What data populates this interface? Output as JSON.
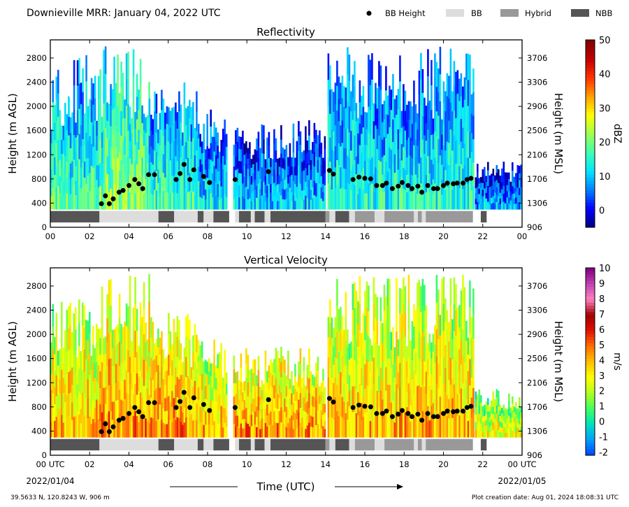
{
  "header": {
    "title": "Downieville MRR:  January 04, 2022 UTC",
    "legend": [
      {
        "label": "BB Height",
        "kind": "dot",
        "color": "#000000"
      },
      {
        "label": "BB",
        "kind": "box",
        "color": "#dddddd"
      },
      {
        "label": "Hybrid",
        "kind": "box",
        "color": "#999999"
      },
      {
        "label": "NBB",
        "kind": "box",
        "color": "#555555"
      }
    ]
  },
  "footer": {
    "location": "39.5633 N, 120.8243 W, 906 m",
    "creation": "Plot creation date: Aug 01, 2024 18:08:31 UTC",
    "xlabel": "Time (UTC)",
    "date_start": "2022/01/04",
    "date_end": "2022/01/05"
  },
  "chart_data": [
    {
      "type": "heatmap",
      "title": "Reflectivity",
      "ylabel": "Height (m AGL)",
      "ylabel_right": "Height (m MSL)",
      "x_unit": "hour UTC",
      "xlim": [
        0,
        24
      ],
      "ylim": [
        0,
        3100
      ],
      "x_ticks": [
        "00",
        "02",
        "04",
        "06",
        "08",
        "10",
        "12",
        "14",
        "16",
        "18",
        "20",
        "22",
        "00"
      ],
      "y_ticks": [
        0,
        400,
        800,
        1200,
        1600,
        2000,
        2400,
        2800
      ],
      "y_ticks_right": [
        "906",
        "1306",
        "1706",
        "2106",
        "2506",
        "2906",
        "3306",
        "3706"
      ],
      "colorbar": {
        "label": "dBZ",
        "min": -5,
        "max": 50,
        "ticks": [
          "0",
          "10",
          "20",
          "30",
          "40",
          "50"
        ],
        "tick_values": [
          0,
          10,
          20,
          30,
          40,
          50
        ],
        "colormap": [
          "#000080",
          "#0000ff",
          "#0080ff",
          "#00e5ff",
          "#40ffb0",
          "#a0ff50",
          "#ffff00",
          "#ffa000",
          "#ff3000",
          "#c00000",
          "#800000"
        ]
      },
      "data_ranges_dbz": [
        {
          "start": 0.0,
          "end": 0.9,
          "min_height": 300,
          "max_height": 2700,
          "typical": 12
        },
        {
          "start": 0.9,
          "end": 2.5,
          "min_height": 300,
          "max_height": 2900,
          "typical": 10
        },
        {
          "start": 2.5,
          "end": 5.0,
          "min_height": 300,
          "max_height": 3000,
          "typical": 15
        },
        {
          "start": 5.0,
          "end": 7.5,
          "min_height": 300,
          "max_height": 2400,
          "typical": 10
        },
        {
          "start": 7.5,
          "end": 9.0,
          "min_height": 300,
          "max_height": 2000,
          "typical": 6
        },
        {
          "start": 9.3,
          "end": 14.0,
          "min_height": 300,
          "max_height": 1800,
          "typical": 4
        },
        {
          "start": 14.1,
          "end": 21.5,
          "min_height": 300,
          "max_height": 3000,
          "typical": 8
        },
        {
          "start": 21.6,
          "end": 24.0,
          "min_height": 300,
          "max_height": 1100,
          "typical": 2
        }
      ]
    },
    {
      "type": "heatmap",
      "title": "Vertical Velocity",
      "ylabel": "Height (m AGL)",
      "ylabel_right": "Height (m MSL)",
      "x_unit": "hour UTC",
      "xlim": [
        0,
        24
      ],
      "ylim": [
        0,
        3100
      ],
      "x_ticks": [
        "00 UTC",
        "02",
        "04",
        "06",
        "08",
        "10",
        "12",
        "14",
        "16",
        "18",
        "20",
        "22",
        "00 UTC"
      ],
      "y_ticks": [
        0,
        400,
        800,
        1200,
        1600,
        2000,
        2400,
        2800
      ],
      "y_ticks_right": [
        "906",
        "1306",
        "1706",
        "2106",
        "2506",
        "2906",
        "3306",
        "3706"
      ],
      "colorbar": {
        "label": "m/s",
        "min": -2.2,
        "max": 10,
        "ticks": [
          "-2",
          "-1",
          "0",
          "1",
          "2",
          "3",
          "4",
          "5",
          "6",
          "7",
          "8",
          "9",
          "10"
        ],
        "tick_values": [
          -2,
          -1,
          0,
          1,
          2,
          3,
          4,
          5,
          6,
          7,
          8,
          9,
          10
        ],
        "colormap": [
          "#0040ff",
          "#00a0ff",
          "#00e0c0",
          "#40ff60",
          "#b0ff20",
          "#ffff00",
          "#ffc000",
          "#ff7000",
          "#e01000",
          "#a00000",
          "#ff80c0",
          "#c040b0",
          "#800080"
        ]
      },
      "data_ranges_ms": [
        {
          "start": 0.0,
          "end": 2.5,
          "min_height": 300,
          "max_height": 2600,
          "typical": 2.5
        },
        {
          "start": 2.5,
          "end": 5.0,
          "min_height": 300,
          "max_height": 3000,
          "typical": 3
        },
        {
          "start": 5.0,
          "end": 7.5,
          "min_height": 300,
          "max_height": 2400,
          "typical": 3
        },
        {
          "start": 7.5,
          "end": 9.0,
          "min_height": 300,
          "max_height": 2000,
          "typical": 2.5
        },
        {
          "start": 9.3,
          "end": 14.0,
          "min_height": 300,
          "max_height": 1800,
          "typical": 3
        },
        {
          "start": 14.1,
          "end": 21.5,
          "min_height": 300,
          "max_height": 3000,
          "typical": 2.5
        },
        {
          "start": 21.6,
          "end": 24.0,
          "min_height": 300,
          "max_height": 1100,
          "typical": 1.5
        }
      ]
    }
  ],
  "bb_height_points": [
    {
      "t": 2.6,
      "h": 390
    },
    {
      "t": 2.8,
      "h": 520
    },
    {
      "t": 3.0,
      "h": 390
    },
    {
      "t": 3.2,
      "h": 470
    },
    {
      "t": 3.5,
      "h": 580
    },
    {
      "t": 3.7,
      "h": 610
    },
    {
      "t": 4.0,
      "h": 690
    },
    {
      "t": 4.3,
      "h": 790
    },
    {
      "t": 4.5,
      "h": 720
    },
    {
      "t": 4.7,
      "h": 640
    },
    {
      "t": 5.0,
      "h": 870
    },
    {
      "t": 5.3,
      "h": 870
    },
    {
      "t": 6.4,
      "h": 790
    },
    {
      "t": 6.6,
      "h": 890
    },
    {
      "t": 6.8,
      "h": 1040
    },
    {
      "t": 7.1,
      "h": 790
    },
    {
      "t": 7.3,
      "h": 950
    },
    {
      "t": 7.8,
      "h": 840
    },
    {
      "t": 8.1,
      "h": 740
    },
    {
      "t": 9.4,
      "h": 790
    },
    {
      "t": 11.1,
      "h": 920
    },
    {
      "t": 14.2,
      "h": 940
    },
    {
      "t": 14.4,
      "h": 880
    },
    {
      "t": 15.4,
      "h": 790
    },
    {
      "t": 15.7,
      "h": 830
    },
    {
      "t": 16.0,
      "h": 810
    },
    {
      "t": 16.3,
      "h": 800
    },
    {
      "t": 16.6,
      "h": 690
    },
    {
      "t": 16.9,
      "h": 690
    },
    {
      "t": 17.1,
      "h": 730
    },
    {
      "t": 17.4,
      "h": 640
    },
    {
      "t": 17.7,
      "h": 680
    },
    {
      "t": 17.9,
      "h": 740
    },
    {
      "t": 18.2,
      "h": 690
    },
    {
      "t": 18.4,
      "h": 640
    },
    {
      "t": 18.7,
      "h": 680
    },
    {
      "t": 18.9,
      "h": 580
    },
    {
      "t": 19.2,
      "h": 690
    },
    {
      "t": 19.5,
      "h": 640
    },
    {
      "t": 19.7,
      "h": 640
    },
    {
      "t": 20.0,
      "h": 690
    },
    {
      "t": 20.2,
      "h": 730
    },
    {
      "t": 20.5,
      "h": 720
    },
    {
      "t": 20.7,
      "h": 730
    },
    {
      "t": 21.0,
      "h": 730
    },
    {
      "t": 21.2,
      "h": 790
    },
    {
      "t": 21.4,
      "h": 810
    }
  ],
  "bb_type_segments": [
    {
      "start": 0.0,
      "end": 2.5,
      "type": "NBB",
      "color": "#555555"
    },
    {
      "start": 2.5,
      "end": 5.5,
      "type": "BB",
      "color": "#dddddd"
    },
    {
      "start": 5.5,
      "end": 6.3,
      "type": "NBB",
      "color": "#555555"
    },
    {
      "start": 6.3,
      "end": 7.5,
      "type": "BB",
      "color": "#dddddd"
    },
    {
      "start": 7.5,
      "end": 7.8,
      "type": "NBB",
      "color": "#555555"
    },
    {
      "start": 7.8,
      "end": 8.3,
      "type": "BB",
      "color": "#dddddd"
    },
    {
      "start": 8.3,
      "end": 9.1,
      "type": "NBB",
      "color": "#555555"
    },
    {
      "start": 9.4,
      "end": 9.6,
      "type": "BB",
      "color": "#dddddd"
    },
    {
      "start": 9.6,
      "end": 10.2,
      "type": "NBB",
      "color": "#555555"
    },
    {
      "start": 10.2,
      "end": 10.4,
      "type": "BB",
      "color": "#dddddd"
    },
    {
      "start": 10.4,
      "end": 10.9,
      "type": "NBB",
      "color": "#555555"
    },
    {
      "start": 10.9,
      "end": 11.2,
      "type": "BB",
      "color": "#dddddd"
    },
    {
      "start": 11.2,
      "end": 14.0,
      "type": "NBB",
      "color": "#555555"
    },
    {
      "start": 14.0,
      "end": 14.2,
      "type": "Hybrid",
      "color": "#999999"
    },
    {
      "start": 14.2,
      "end": 14.5,
      "type": "BB",
      "color": "#dddddd"
    },
    {
      "start": 14.5,
      "end": 15.2,
      "type": "NBB",
      "color": "#555555"
    },
    {
      "start": 15.2,
      "end": 15.5,
      "type": "BB",
      "color": "#dddddd"
    },
    {
      "start": 15.5,
      "end": 16.5,
      "type": "Hybrid",
      "color": "#999999"
    },
    {
      "start": 16.5,
      "end": 17.0,
      "type": "BB",
      "color": "#dddddd"
    },
    {
      "start": 17.0,
      "end": 18.5,
      "type": "Hybrid",
      "color": "#999999"
    },
    {
      "start": 18.5,
      "end": 18.7,
      "type": "BB",
      "color": "#dddddd"
    },
    {
      "start": 18.7,
      "end": 18.9,
      "type": "Hybrid",
      "color": "#999999"
    },
    {
      "start": 18.9,
      "end": 19.1,
      "type": "BB",
      "color": "#dddddd"
    },
    {
      "start": 19.1,
      "end": 21.5,
      "type": "Hybrid",
      "color": "#999999"
    },
    {
      "start": 21.9,
      "end": 22.2,
      "type": "NBB",
      "color": "#555555"
    }
  ]
}
